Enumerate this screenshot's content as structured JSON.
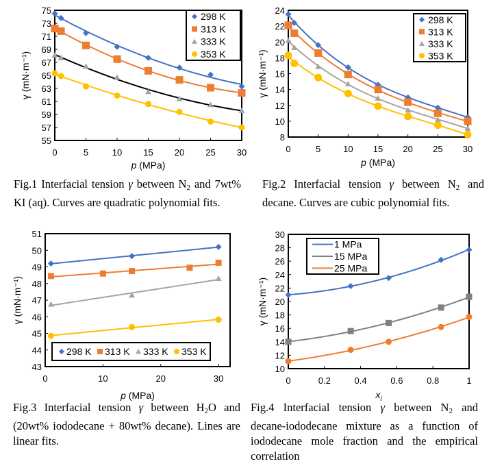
{
  "figures": [
    {
      "caption_html": "Fig.1 Interfacial tension <i>γ</i> between N<sub>2</sub> and 7wt% KI (aq). Curves are quadratic polynomial fits."
    },
    {
      "caption_html": "Fig.2 Interfacial tension <i>γ</i> between N<sub>2</sub> and decane. Curves are cubic polynomial fits."
    },
    {
      "caption_html": "Fig.3 Interfacial tension <i>γ</i> between H<sub>2</sub>O and (20wt% iododecane + 80wt% decane). Lines are linear fits."
    },
    {
      "caption_html": "Fig.4 Interfacial tension <i>γ</i> between N<sub>2</sub> and decane-iododecane mixture as a function of iododecane mole fraction and the empirical correlation"
    }
  ],
  "chart_data": [
    {
      "id": "fig1",
      "type": "scatter",
      "title": "",
      "xlabel": "p (MPa)",
      "ylabel": "γ (mN·m⁻¹)",
      "xlim": [
        0,
        30
      ],
      "ylim": [
        55,
        75
      ],
      "xticks": [
        0,
        5,
        10,
        15,
        20,
        25,
        30
      ],
      "yticks": [
        55,
        57,
        59,
        61,
        63,
        65,
        67,
        69,
        71,
        73,
        75
      ],
      "legend": "top-right",
      "fit": "quadratic",
      "series": [
        {
          "name": "298 K",
          "marker": "diamond",
          "color": "#4472C4",
          "line_color": "#4472C4",
          "x": [
            0,
            1,
            5,
            10,
            15,
            20,
            25,
            30
          ],
          "y": [
            74.5,
            73.8,
            71.5,
            69.4,
            67.7,
            66.2,
            65.1,
            63.3
          ]
        },
        {
          "name": "313 K",
          "marker": "square",
          "color": "#ED7D31",
          "line_color": "#ED7D31",
          "x": [
            0,
            1,
            5,
            10,
            15,
            20,
            25,
            30
          ],
          "y": [
            72.2,
            71.8,
            69.6,
            67.5,
            65.7,
            64.3,
            63.1,
            62.3
          ]
        },
        {
          "name": "333 K",
          "marker": "triangle",
          "color": "#A5A5A5",
          "line_color": "#000000",
          "x": [
            0,
            1,
            5,
            10,
            15,
            20,
            25,
            30
          ],
          "y": [
            68.1,
            67.7,
            66.4,
            64.7,
            62.5,
            61.4,
            60.5,
            59.6
          ]
        },
        {
          "name": "353 K",
          "marker": "circle",
          "color": "#FFC000",
          "line_color": "#FFC000",
          "x": [
            0,
            1,
            5,
            10,
            15,
            20,
            25,
            30
          ],
          "y": [
            65.3,
            64.9,
            63.3,
            61.9,
            60.6,
            59.4,
            57.9,
            57.0
          ]
        }
      ]
    },
    {
      "id": "fig2",
      "type": "scatter",
      "title": "",
      "xlabel": "p (MPa)",
      "ylabel": "γ (mN·m⁻¹)",
      "xlim": [
        0,
        30
      ],
      "ylim": [
        8,
        24
      ],
      "xticks": [
        0,
        5,
        10,
        15,
        20,
        25,
        30
      ],
      "yticks": [
        8,
        10,
        12,
        14,
        16,
        18,
        20,
        22,
        24
      ],
      "legend": "top-right",
      "fit": "cubic",
      "series": [
        {
          "name": "298 K",
          "marker": "diamond",
          "color": "#4472C4",
          "line_color": "#4472C4",
          "x": [
            0,
            1,
            5,
            10,
            15,
            20,
            25,
            30
          ],
          "y": [
            23.5,
            22.4,
            19.6,
            16.8,
            14.6,
            13.0,
            11.7,
            10.5
          ]
        },
        {
          "name": "313 K",
          "marker": "square",
          "color": "#ED7D31",
          "line_color": "#ED7D31",
          "x": [
            0,
            1,
            5,
            10,
            15,
            20,
            25,
            30
          ],
          "y": [
            22.1,
            21.1,
            18.6,
            15.9,
            14.0,
            12.4,
            11.0,
            10.0
          ]
        },
        {
          "name": "333 K",
          "marker": "triangle",
          "color": "#A5A5A5",
          "line_color": "#A5A5A5",
          "x": [
            0,
            1,
            5,
            10,
            15,
            20,
            25,
            30
          ],
          "y": [
            20.2,
            19.3,
            16.9,
            14.7,
            12.9,
            11.4,
            10.2,
            9.1
          ]
        },
        {
          "name": "353 K",
          "marker": "circle",
          "color": "#FFC000",
          "line_color": "#FFC000",
          "x": [
            0,
            1,
            5,
            10,
            15,
            20,
            25,
            30
          ],
          "y": [
            18.3,
            17.3,
            15.5,
            13.5,
            11.9,
            10.6,
            9.5,
            8.3
          ]
        }
      ]
    },
    {
      "id": "fig3",
      "type": "scatter",
      "title": "",
      "xlabel": "p (MPa)",
      "ylabel": "γ (mN·m⁻¹)",
      "xlim": [
        0,
        32
      ],
      "ylim": [
        43,
        51
      ],
      "xticks": [
        0,
        10,
        20,
        30
      ],
      "yticks": [
        43,
        44,
        45,
        46,
        47,
        48,
        49,
        50,
        51
      ],
      "legend": "bottom",
      "fit": "linear",
      "series": [
        {
          "name": "298 K",
          "marker": "diamond",
          "color": "#4472C4",
          "line_color": "#4472C4",
          "x": [
            1,
            15,
            30
          ],
          "y": [
            49.2,
            49.65,
            50.2
          ]
        },
        {
          "name": "313 K",
          "marker": "square",
          "color": "#ED7D31",
          "line_color": "#ED7D31",
          "x": [
            1,
            10,
            15,
            25,
            30
          ],
          "y": [
            48.45,
            48.6,
            48.75,
            48.95,
            49.25
          ]
        },
        {
          "name": "333 K",
          "marker": "triangle",
          "color": "#A5A5A5",
          "line_color": "#A5A5A5",
          "x": [
            1,
            15,
            30
          ],
          "y": [
            46.75,
            47.3,
            48.3
          ]
        },
        {
          "name": "353 K",
          "marker": "circle",
          "color": "#FFC000",
          "line_color": "#FFC000",
          "x": [
            1,
            15,
            30
          ],
          "y": [
            44.85,
            45.38,
            45.82
          ]
        }
      ]
    },
    {
      "id": "fig4",
      "type": "line",
      "title": "",
      "xlabel": "xi",
      "ylabel": "γ (mN·m⁻¹)",
      "xlim": [
        0,
        1
      ],
      "ylim": [
        10,
        30
      ],
      "xticks": [
        0,
        0.2,
        0.4,
        0.6,
        0.8,
        1
      ],
      "yticks": [
        10,
        12,
        14,
        16,
        18,
        20,
        22,
        24,
        26,
        28,
        30
      ],
      "legend": "top-left",
      "fit": "empirical correlation",
      "series": [
        {
          "name": "1 MPa",
          "marker": "diamond",
          "color": "#4472C4",
          "line_color": "#4472C4",
          "x": [
            0,
            0.345,
            0.555,
            0.845,
            1
          ],
          "y": [
            21.0,
            22.3,
            23.5,
            26.2,
            27.7
          ]
        },
        {
          "name": "15 MPa",
          "marker": "square",
          "color": "#808080",
          "line_color": "#808080",
          "x": [
            0,
            0.345,
            0.555,
            0.845,
            1
          ],
          "y": [
            14.0,
            15.6,
            16.8,
            19.1,
            20.7
          ]
        },
        {
          "name": "25 MPa",
          "marker": "circle",
          "color": "#ED7D31",
          "line_color": "#ED7D31",
          "x": [
            0,
            0.345,
            0.555,
            0.845,
            1
          ],
          "y": [
            11.1,
            12.8,
            14.0,
            16.2,
            17.7
          ]
        }
      ]
    }
  ]
}
